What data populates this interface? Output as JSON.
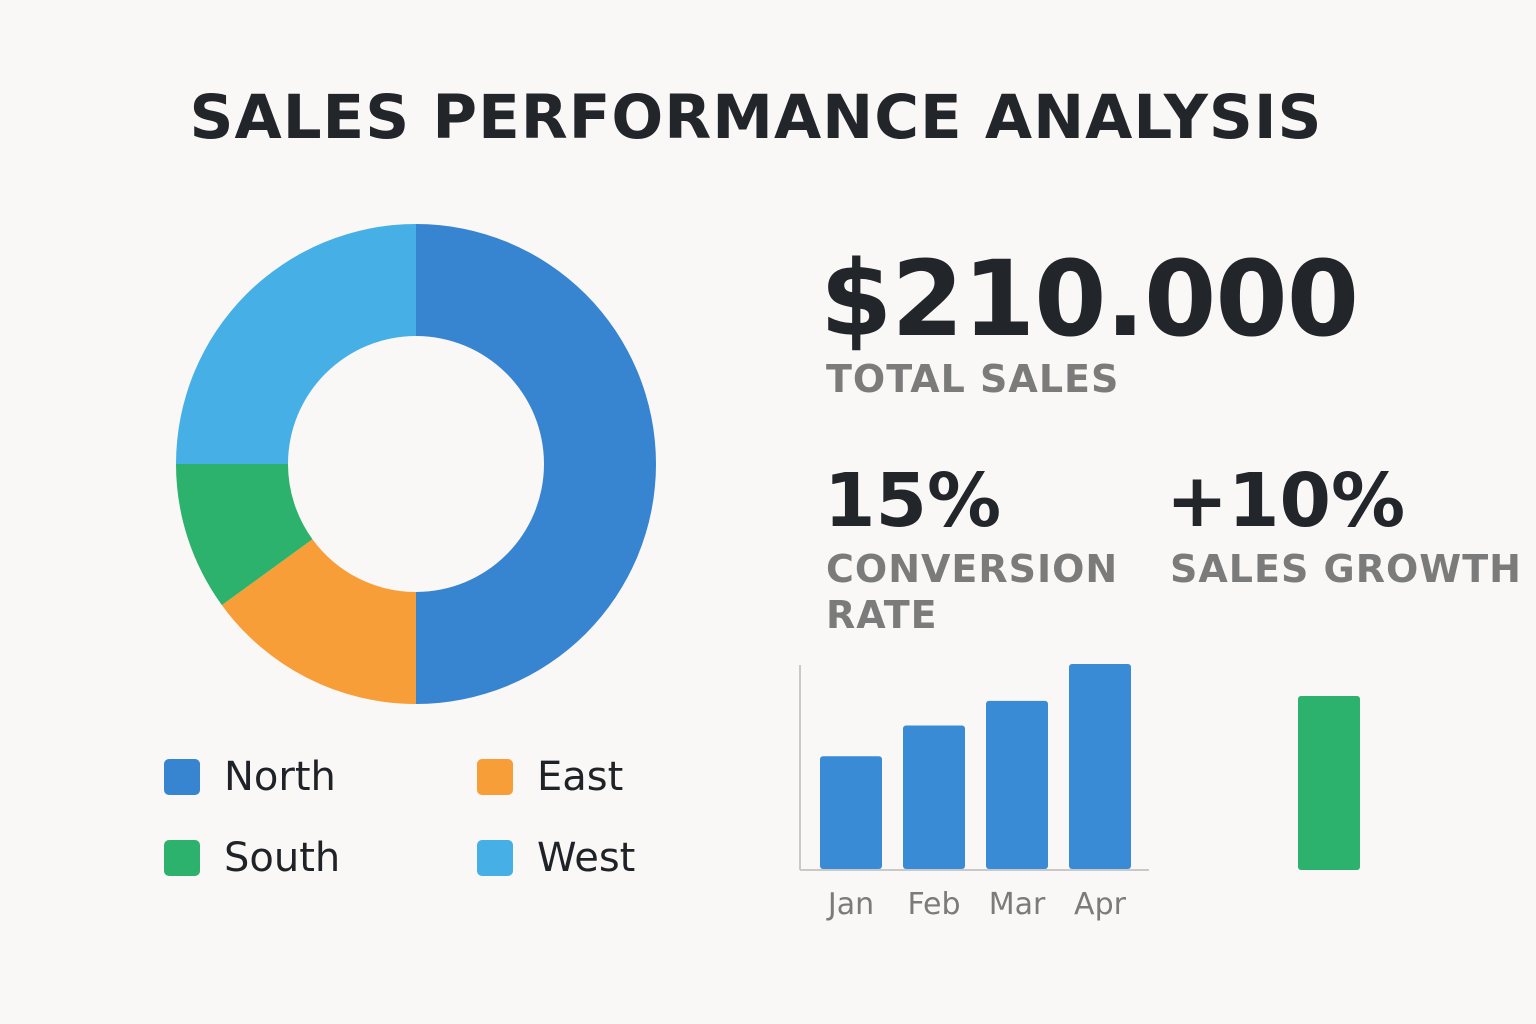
{
  "title": "SALES PERFORMANCE ANALYSIS",
  "kpis": {
    "total_sales": {
      "value": "$210.000",
      "label": "TOTAL SALES"
    },
    "conversion_rate": {
      "value": "15%",
      "label": "CONVERSION RATE"
    },
    "sales_growth": {
      "value": "+10%",
      "label": "SALES GROWTH"
    }
  },
  "legend": [
    {
      "label": "North",
      "color": "#3784d0"
    },
    {
      "label": "East",
      "color": "#f79e38"
    },
    {
      "label": "South",
      "color": "#2cb26c"
    },
    {
      "label": "West",
      "color": "#46b0e6"
    }
  ],
  "chart_data": [
    {
      "type": "pie",
      "variant": "donut",
      "categories": [
        "North",
        "East",
        "South",
        "West"
      ],
      "values": [
        50,
        15,
        10,
        25
      ],
      "colors": [
        "#3784d0",
        "#f79e38",
        "#2cb26c",
        "#46b0e6"
      ],
      "legend_position": "bottom"
    },
    {
      "type": "bar",
      "categories": [
        "Jan",
        "Feb",
        "Mar",
        "Apr"
      ],
      "values": [
        55,
        70,
        82,
        100
      ],
      "ylim": [
        0,
        100
      ],
      "color": "#3a8bd6"
    },
    {
      "type": "bar",
      "categories": [
        ""
      ],
      "values": [
        10
      ],
      "color": "#2cb26c"
    }
  ]
}
